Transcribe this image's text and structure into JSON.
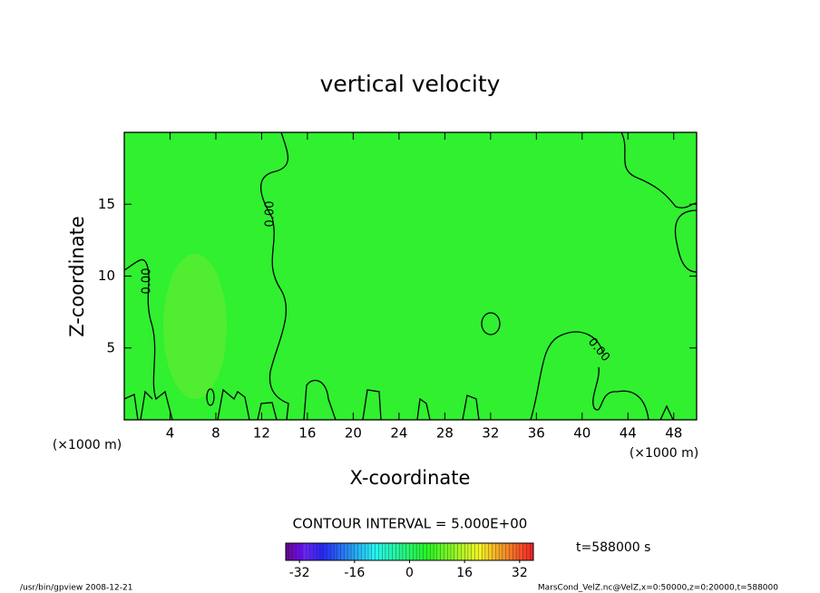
{
  "chart_data": {
    "type": "contour",
    "title": "vertical velocity",
    "xlabel": "X-coordinate",
    "ylabel": "Z-coordinate",
    "xunit": "(×1000 m)",
    "xlim": [
      0,
      50
    ],
    "ylim": [
      0,
      20
    ],
    "xticks": [
      4,
      8,
      12,
      16,
      20,
      24,
      28,
      32,
      36,
      40,
      44,
      48
    ],
    "yticks": [
      5,
      10,
      15
    ],
    "field_color": "#30f030",
    "contour_levels": [
      {
        "value": 0,
        "label": "0.00"
      }
    ],
    "contour_interval": "CONTOUR INTERVAL = 5.000E+00",
    "clim": [
      -36,
      36
    ],
    "cticks": [
      -32,
      -16,
      0,
      16,
      32
    ],
    "time": "t=588000 s",
    "footer_left": "/usr/bin/gpview   2008-12-21",
    "footer_right": "MarsCond_VelZ.nc@VelZ,x=0:50000,z=0:20000,t=588000"
  }
}
